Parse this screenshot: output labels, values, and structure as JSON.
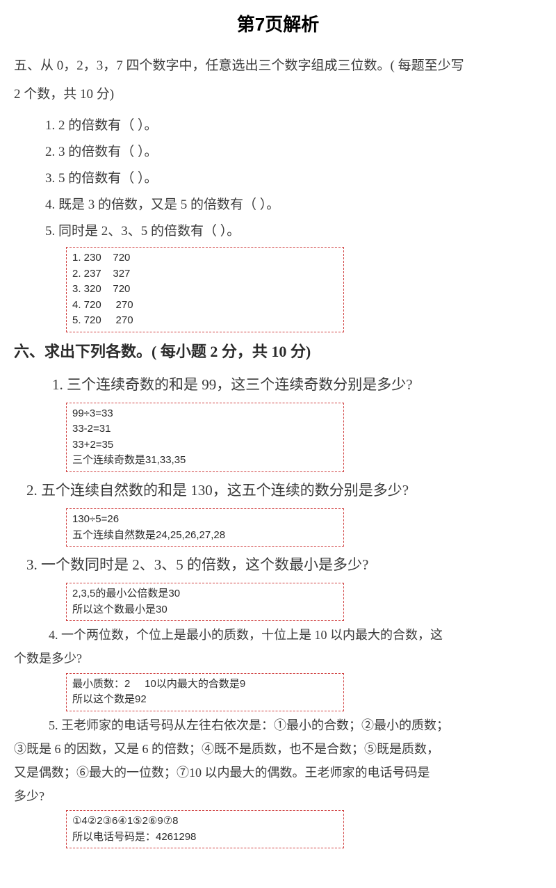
{
  "title": "第7页解析",
  "section5": {
    "header_line1": "五、从 0，2，3，7 四个数字中，任意选出三个数字组成三位数。( 每题至少写",
    "header_line2": "2 个数，共 10 分)",
    "q1": "1.  2 的倍数有（                                ）。",
    "q2": "2.  3 的倍数有（                                ）。",
    "q3": "3.  5 的倍数有（                                ）。",
    "q4": "4.  既是 3 的倍数，又是 5 的倍数有（                                ）。",
    "q5": "5.  同时是 2、3、5 的倍数有（                                ）。",
    "answer": {
      "l1": "1. 230    720",
      "l2": "2. 237    327",
      "l3": "3. 320    720",
      "l4": "4. 720     270",
      "l5": "5. 720     270"
    }
  },
  "section6": {
    "header": "六、求出下列各数。( 每小题 2 分，共 10 分)",
    "q1": {
      "text": "1.  三个连续奇数的和是 99，这三个连续奇数分别是多少?",
      "ans": {
        "l1": "99÷3=33",
        "l2": "33-2=31",
        "l3": "33+2=35",
        "l4": "三个连续奇数是31,33,35"
      }
    },
    "q2": {
      "text": "2.  五个连续自然数的和是 130，这五个连续的数分别是多少?",
      "ans": {
        "l1": "130÷5=26",
        "l2": "五个连续自然数是24,25,26,27,28"
      }
    },
    "q3": {
      "text": "3.  一个数同时是 2、3、5 的倍数，这个数最小是多少?",
      "ans": {
        "l1": "2,3,5的最小公倍数是30",
        "l2": "所以这个数最小是30"
      }
    },
    "q4": {
      "line1": "4.  一个两位数，个位上是最小的质数，十位上是 10 以内最大的合数，这",
      "line2": "个数是多少?",
      "ans": {
        "l1": "最小质数：2     10以内最大的合数是9",
        "l2": "所以这个数是92"
      }
    },
    "q5": {
      "line1": "5.  王老师家的电话号码从左往右依次是：①最小的合数；②最小的质数；",
      "line2": "③既是 6 的因数，又是 6 的倍数；④既不是质数，也不是合数；⑤既是质数，",
      "line3": "又是偶数；⑥最大的一位数；⑦10 以内最大的偶数。王老师家的电话号码是",
      "line4": "多少?",
      "ans": {
        "l1": "①4②2③6④1⑤2⑥9⑦8",
        "l2": "所以电话号码是：4261298"
      }
    }
  }
}
